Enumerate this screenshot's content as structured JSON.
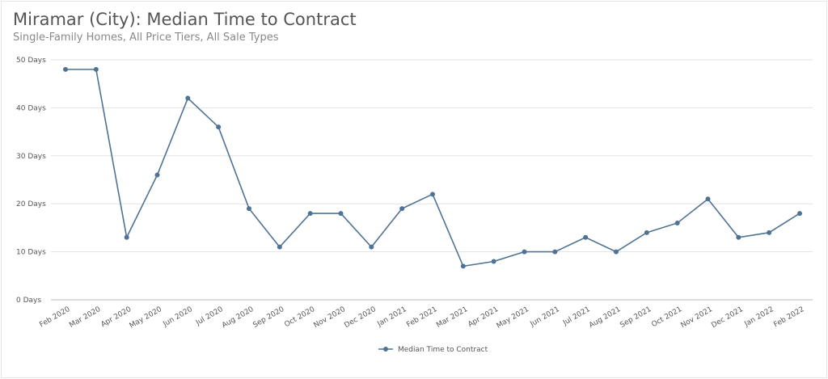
{
  "chart_data": {
    "type": "line",
    "title": "Miramar (City): Median Time to Contract",
    "subtitle": "Single-Family Homes, All Price Tiers, All Sale Types",
    "categories": [
      "Feb 2020",
      "Mar 2020",
      "Apr 2020",
      "May 2020",
      "Jun 2020",
      "Jul 2020",
      "Aug 2020",
      "Sep 2020",
      "Oct 2020",
      "Nov 2020",
      "Dec 2020",
      "Jan 2021",
      "Feb 2021",
      "Mar 2021",
      "Apr 2021",
      "May 2021",
      "Jun 2021",
      "Jul 2021",
      "Aug 2021",
      "Sep 2021",
      "Oct 2021",
      "Nov 2021",
      "Dec 2021",
      "Jan 2022",
      "Feb 2022"
    ],
    "series": [
      {
        "name": "Median Time to Contract",
        "color": "#4f7394",
        "values": [
          48,
          48,
          13,
          26,
          42,
          36,
          19,
          11,
          18,
          18,
          11,
          19,
          22,
          7,
          8,
          10,
          10,
          13,
          10,
          14,
          16,
          21,
          13,
          14,
          18
        ]
      }
    ],
    "yticks": [
      "0 Days",
      "10 Days",
      "20 Days",
      "30 Days",
      "40 Days",
      "50 Days"
    ],
    "ylim": [
      0,
      50
    ],
    "grid": true,
    "legend": "bottom-center"
  }
}
